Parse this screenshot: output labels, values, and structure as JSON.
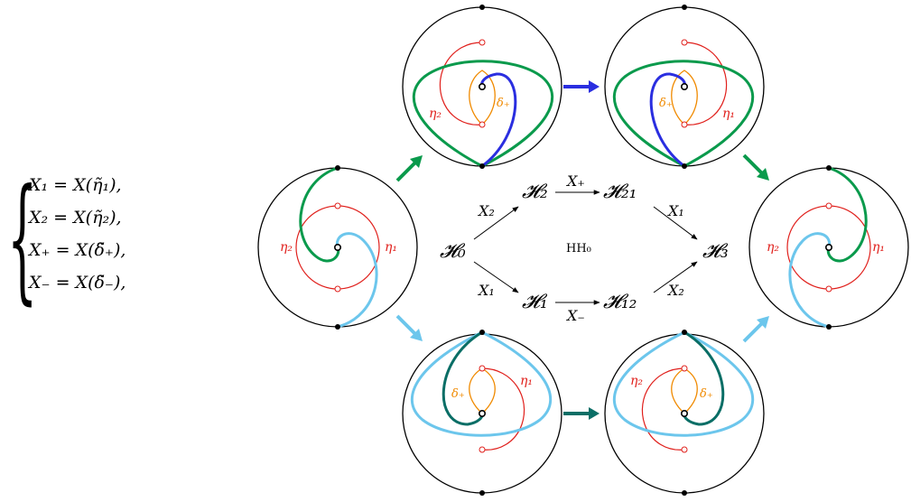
{
  "equations": [
    "X₁ = X(η̃₁),",
    "X₂ = X(η̃₂),",
    "X₊ = X(δ̃₊),",
    "X₋ = X(δ̃₋),"
  ],
  "diagram": {
    "nodes": {
      "h0": "𝓗₀",
      "h1": "𝓗₁",
      "h2": "𝓗₂",
      "h12": "𝓗₁₂",
      "h21": "𝓗₂₁",
      "h3": "𝓗₃",
      "center": "HH₀"
    },
    "edges": {
      "h0_h2": "X₂",
      "h0_h1": "X₁",
      "h2_h21": "X₊",
      "h1_h12": "X₋",
      "h21_h3": "X₁",
      "h12_h3": "X₂"
    },
    "curve_labels": {
      "eta1": "η₁",
      "eta2": "η₂",
      "delta_plus": "δ₊"
    },
    "colors": {
      "eta": "#e0201c",
      "delta": "#f08a00",
      "green": "#0a9a4c",
      "blue": "#2a2ee0",
      "lightblue": "#6cc6ec",
      "teal": "#0a6e66"
    }
  }
}
